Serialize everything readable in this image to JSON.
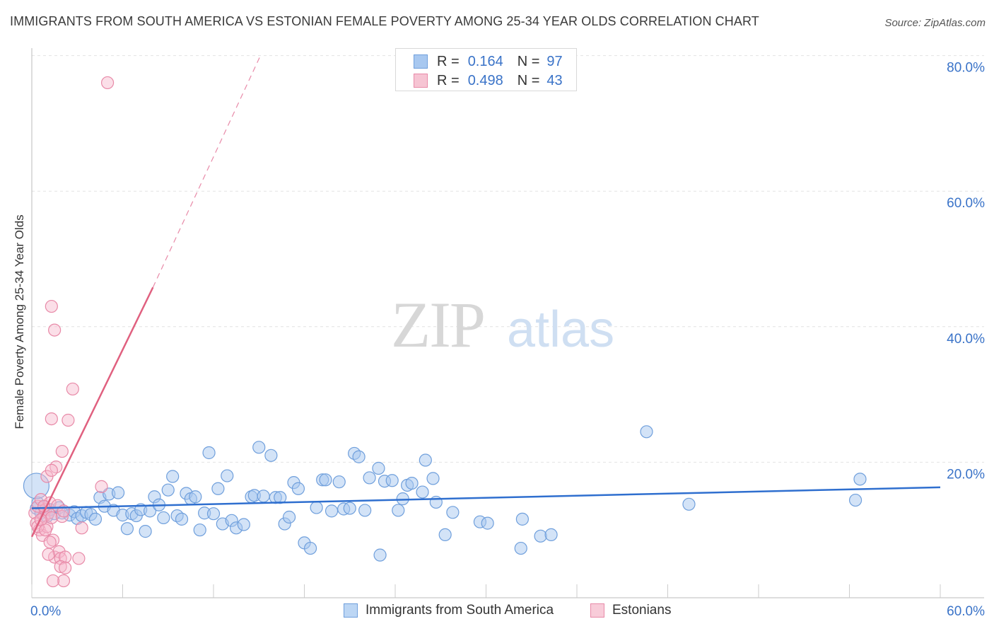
{
  "chart_data": {
    "type": "scatter",
    "title": "IMMIGRANTS FROM SOUTH AMERICA VS ESTONIAN FEMALE POVERTY AMONG 25-34 YEAR OLDS CORRELATION CHART",
    "source": "Source: ZipAtlas.com",
    "ylabel": "Female Poverty Among 25-34 Year Olds",
    "xlabel": "",
    "xlim": [
      0,
      60
    ],
    "ylim": [
      0,
      80
    ],
    "x_tick_labels": [
      "0.0%",
      "60.0%"
    ],
    "y_tick_labels": [
      "20.0%",
      "40.0%",
      "60.0%",
      "80.0%"
    ],
    "watermark": {
      "zip": "ZIP",
      "atlas": "atlas"
    },
    "colors": {
      "blue_fill": "#a8c8f0",
      "blue_stroke": "#6f9fdc",
      "blue_line": "#2f6fcf",
      "pink_fill": "#f6b8cb",
      "pink_stroke": "#e88aa8",
      "pink_line": "#e0607f",
      "axis_label": "#3a73c8",
      "grid": "#e2e2e2"
    },
    "legend_stats": [
      {
        "r_label": "R =",
        "r_value": "0.164",
        "n_label": "N =",
        "n_value": "97",
        "series": "blue"
      },
      {
        "r_label": "R =",
        "r_value": "0.498",
        "n_label": "N =",
        "n_value": "43",
        "series": "pink"
      }
    ],
    "series": [
      {
        "name": "Immigrants from South America",
        "color": "blue",
        "trendline": {
          "x": [
            0,
            60
          ],
          "y": [
            13.2,
            16.3
          ]
        },
        "points": [
          [
            0.3,
            13.2
          ],
          [
            0.4,
            14.0
          ],
          [
            0.6,
            12.5
          ],
          [
            0.8,
            13.4
          ],
          [
            1.0,
            12.0
          ],
          [
            1.2,
            13.0
          ],
          [
            1.5,
            12.4
          ],
          [
            1.8,
            13.3
          ],
          [
            2.0,
            12.5
          ],
          [
            2.5,
            12.2
          ],
          [
            2.8,
            12.7
          ],
          [
            3.0,
            11.7
          ],
          [
            3.3,
            12.1
          ],
          [
            3.6,
            12.6
          ],
          [
            3.9,
            12.3
          ],
          [
            4.2,
            11.6
          ],
          [
            4.5,
            14.8
          ],
          [
            4.8,
            13.5
          ],
          [
            5.1,
            15.3
          ],
          [
            5.4,
            12.9
          ],
          [
            5.7,
            15.5
          ],
          [
            6.0,
            12.2
          ],
          [
            6.3,
            10.2
          ],
          [
            6.6,
            12.4
          ],
          [
            6.9,
            12.1
          ],
          [
            7.2,
            13.0
          ],
          [
            7.5,
            9.8
          ],
          [
            7.8,
            12.8
          ],
          [
            8.1,
            14.9
          ],
          [
            8.4,
            13.7
          ],
          [
            8.7,
            11.8
          ],
          [
            9.0,
            15.9
          ],
          [
            9.3,
            17.9
          ],
          [
            9.6,
            12.1
          ],
          [
            9.9,
            11.6
          ],
          [
            10.2,
            15.4
          ],
          [
            10.5,
            14.6
          ],
          [
            10.8,
            14.9
          ],
          [
            11.1,
            10.0
          ],
          [
            11.4,
            12.5
          ],
          [
            11.7,
            21.4
          ],
          [
            12.0,
            12.4
          ],
          [
            12.3,
            16.1
          ],
          [
            12.6,
            10.9
          ],
          [
            12.9,
            18.0
          ],
          [
            13.2,
            11.4
          ],
          [
            13.5,
            10.3
          ],
          [
            14.0,
            10.8
          ],
          [
            14.5,
            14.9
          ],
          [
            14.7,
            15.1
          ],
          [
            15.0,
            22.2
          ],
          [
            15.3,
            15.0
          ],
          [
            15.8,
            21.0
          ],
          [
            16.1,
            14.8
          ],
          [
            16.4,
            14.8
          ],
          [
            16.7,
            10.9
          ],
          [
            17.0,
            11.9
          ],
          [
            17.3,
            17.0
          ],
          [
            17.6,
            16.1
          ],
          [
            18.0,
            8.1
          ],
          [
            18.4,
            7.3
          ],
          [
            18.8,
            13.3
          ],
          [
            19.2,
            17.4
          ],
          [
            19.4,
            17.4
          ],
          [
            19.8,
            12.8
          ],
          [
            20.3,
            17.1
          ],
          [
            20.6,
            13.1
          ],
          [
            21.0,
            13.2
          ],
          [
            21.3,
            21.3
          ],
          [
            21.6,
            20.8
          ],
          [
            22.0,
            12.9
          ],
          [
            22.3,
            17.7
          ],
          [
            22.9,
            19.1
          ],
          [
            23.0,
            6.3
          ],
          [
            23.3,
            17.2
          ],
          [
            23.8,
            17.3
          ],
          [
            24.2,
            12.9
          ],
          [
            24.5,
            14.6
          ],
          [
            24.8,
            16.6
          ],
          [
            25.1,
            16.9
          ],
          [
            25.8,
            15.6
          ],
          [
            26.0,
            20.3
          ],
          [
            26.5,
            17.6
          ],
          [
            26.7,
            14.1
          ],
          [
            27.3,
            9.3
          ],
          [
            27.8,
            12.6
          ],
          [
            29.6,
            11.2
          ],
          [
            30.1,
            11.0
          ],
          [
            32.4,
            11.6
          ],
          [
            32.3,
            7.3
          ],
          [
            33.6,
            9.1
          ],
          [
            34.3,
            9.3
          ],
          [
            40.6,
            24.5
          ],
          [
            43.4,
            13.8
          ],
          [
            54.4,
            14.4
          ],
          [
            54.7,
            17.5
          ],
          [
            0.3,
            16.5
          ]
        ]
      },
      {
        "name": "Estonians",
        "color": "pink",
        "trendline": {
          "x": [
            0,
            8.0
          ],
          "y": [
            9.0,
            45.8
          ]
        },
        "trendline_dashed": {
          "x": [
            8.0,
            15.1
          ],
          "y": [
            45.8,
            80.0
          ]
        },
        "points": [
          [
            0.2,
            12.5
          ],
          [
            0.3,
            11.0
          ],
          [
            0.4,
            13.5
          ],
          [
            0.5,
            10.0
          ],
          [
            0.6,
            14.5
          ],
          [
            0.7,
            9.2
          ],
          [
            0.8,
            12.0
          ],
          [
            0.9,
            13.0
          ],
          [
            1.0,
            10.5
          ],
          [
            1.1,
            12.5
          ],
          [
            1.2,
            14.0
          ],
          [
            1.3,
            11.8
          ],
          [
            1.4,
            8.5
          ],
          [
            1.5,
            6.0
          ],
          [
            1.6,
            19.3
          ],
          [
            1.7,
            13.6
          ],
          [
            1.8,
            6.8
          ],
          [
            1.9,
            5.8
          ],
          [
            2.0,
            12.0
          ],
          [
            2.1,
            2.5
          ],
          [
            2.2,
            6.0
          ],
          [
            0.4,
            10.5
          ],
          [
            0.6,
            11.5
          ],
          [
            0.9,
            10.0
          ],
          [
            1.2,
            8.2
          ],
          [
            1.0,
            17.9
          ],
          [
            1.3,
            18.8
          ],
          [
            1.1,
            6.4
          ],
          [
            1.4,
            2.5
          ],
          [
            1.3,
            26.4
          ],
          [
            1.3,
            43.0
          ],
          [
            1.5,
            39.5
          ],
          [
            1.9,
            4.6
          ],
          [
            2.0,
            21.6
          ],
          [
            2.4,
            26.2
          ],
          [
            2.7,
            30.8
          ],
          [
            3.1,
            5.8
          ],
          [
            3.3,
            10.3
          ],
          [
            4.6,
            16.4
          ],
          [
            5.0,
            76.0
          ],
          [
            0.8,
            13.5
          ],
          [
            2.1,
            12.8
          ],
          [
            2.2,
            4.4
          ]
        ]
      }
    ]
  }
}
